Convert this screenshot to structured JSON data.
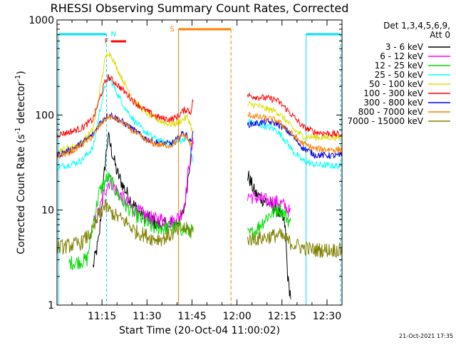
{
  "chart_data": {
    "type": "line",
    "title": "RHESSI Observing Summary Count Rates, Corrected",
    "xlabel": "Start Time (20-Oct-04 11:00:02)",
    "ylabel": "Corrected Count Rate (s",
    "ylabel_sup1": "-1",
    "ylabel_mid": " detector",
    "ylabel_sup2": "-1",
    "ylabel_end": ")",
    "y_scale": "log",
    "ylim": [
      1,
      1000
    ],
    "xlim_minutes": [
      0,
      95
    ],
    "x_ticks": [
      {
        "t": 15,
        "label": "11:15"
      },
      {
        "t": 30,
        "label": "11:30"
      },
      {
        "t": 45,
        "label": "11:45"
      },
      {
        "t": 60,
        "label": "12:00"
      },
      {
        "t": 75,
        "label": "12:15"
      },
      {
        "t": 90,
        "label": "12:30"
      }
    ],
    "y_ticks": [
      {
        "v": 1,
        "label": "1"
      },
      {
        "v": 10,
        "label": "10"
      },
      {
        "v": 100,
        "label": "100"
      },
      {
        "v": 1000,
        "label": "1000"
      }
    ],
    "legend_header": [
      "Det 1,3,4,5,6,9,",
      "Att 0"
    ],
    "legend_position": "right",
    "footer_date": "21-Oct-2021 17:35",
    "annotations": [
      {
        "label": "N",
        "color": "#00e0ff"
      },
      {
        "label": "F",
        "color": "#ff0000"
      },
      {
        "label": "S",
        "color": "#ff7f00"
      }
    ],
    "data_gaps_minutes": [
      [
        45.5,
        63.5
      ]
    ],
    "series": [
      {
        "name": "3 - 6 keV",
        "color": "#000000",
        "points": [
          [
            12,
            2.5
          ],
          [
            14,
            5
          ],
          [
            16,
            30
          ],
          [
            17,
            60
          ],
          [
            18,
            45
          ],
          [
            20,
            25
          ],
          [
            22,
            18
          ],
          [
            25,
            12
          ],
          [
            28,
            9
          ],
          [
            31,
            8
          ],
          [
            34,
            7
          ],
          [
            37,
            7
          ],
          [
            40,
            7.5
          ],
          [
            42,
            9
          ],
          [
            43,
            14
          ],
          [
            44,
            28
          ],
          [
            45,
            45
          ],
          [
            45.5,
            60
          ],
          [
            64,
            22
          ],
          [
            66,
            15
          ],
          [
            70,
            12
          ],
          [
            72,
            11
          ],
          [
            74,
            9.5
          ],
          [
            76,
            7
          ],
          [
            77,
            1.8
          ],
          [
            78,
            1.2
          ]
        ]
      },
      {
        "name": "6 - 12 keV",
        "color": "#ff00ff",
        "points": [
          [
            12,
            7
          ],
          [
            14,
            9.5
          ],
          [
            16,
            16
          ],
          [
            17,
            19
          ],
          [
            18,
            20
          ],
          [
            20,
            16
          ],
          [
            23,
            12
          ],
          [
            26,
            10
          ],
          [
            29,
            9
          ],
          [
            32,
            8
          ],
          [
            35,
            8
          ],
          [
            38,
            7.5
          ],
          [
            40,
            8
          ],
          [
            42,
            10
          ],
          [
            43,
            15
          ],
          [
            44,
            30
          ],
          [
            45,
            45
          ],
          [
            45.5,
            55
          ],
          [
            64,
            14
          ],
          [
            66,
            13.5
          ],
          [
            70,
            12.5
          ],
          [
            74,
            12
          ],
          [
            76,
            11
          ],
          [
            78,
            9
          ]
        ]
      },
      {
        "name": "12 - 25 keV",
        "color": "#00dd00",
        "points": [
          [
            4,
            2.8
          ],
          [
            6,
            2.8
          ],
          [
            8,
            2.9
          ],
          [
            10,
            3
          ],
          [
            12,
            7
          ],
          [
            14,
            15
          ],
          [
            16,
            20
          ],
          [
            17,
            22
          ],
          [
            18,
            20
          ],
          [
            20,
            15
          ],
          [
            23,
            11
          ],
          [
            26,
            9
          ],
          [
            29,
            7.5
          ],
          [
            32,
            6.5
          ],
          [
            35,
            6.5
          ],
          [
            38,
            6.5
          ],
          [
            41,
            6.5
          ],
          [
            43,
            6
          ],
          [
            44.5,
            6
          ],
          [
            64,
            5.5
          ],
          [
            66,
            6
          ],
          [
            70,
            8.5
          ],
          [
            74,
            10.5
          ],
          [
            76,
            9
          ],
          [
            78,
            7
          ]
        ]
      },
      {
        "name": "25 - 50 keV",
        "color": "#00ffff",
        "points": [
          [
            0,
            28
          ],
          [
            4,
            30
          ],
          [
            8,
            33
          ],
          [
            12,
            45
          ],
          [
            14,
            100
          ],
          [
            16,
            200
          ],
          [
            17,
            240
          ],
          [
            18,
            230
          ],
          [
            20,
            170
          ],
          [
            23,
            115
          ],
          [
            26,
            85
          ],
          [
            29,
            68
          ],
          [
            32,
            58
          ],
          [
            35,
            52
          ],
          [
            38,
            50
          ],
          [
            40,
            52
          ],
          [
            42,
            55
          ],
          [
            43.5,
            60
          ],
          [
            44.5,
            45
          ],
          [
            45.5,
            30
          ],
          [
            64,
            85
          ],
          [
            67,
            80
          ],
          [
            70,
            75
          ],
          [
            73,
            70
          ],
          [
            76,
            55
          ],
          [
            79,
            40
          ],
          [
            82,
            33
          ],
          [
            86,
            30
          ],
          [
            95,
            29
          ]
        ]
      },
      {
        "name": "50 - 100 keV",
        "color": "#dddd00",
        "points": [
          [
            0,
            42
          ],
          [
            4,
            45
          ],
          [
            8,
            50
          ],
          [
            12,
            70
          ],
          [
            14,
            160
          ],
          [
            16,
            380
          ],
          [
            17,
            460
          ],
          [
            18,
            430
          ],
          [
            20,
            310
          ],
          [
            23,
            200
          ],
          [
            26,
            140
          ],
          [
            29,
            110
          ],
          [
            32,
            95
          ],
          [
            35,
            85
          ],
          [
            38,
            80
          ],
          [
            40,
            82
          ],
          [
            42,
            90
          ],
          [
            43.5,
            95
          ],
          [
            44.5,
            80
          ],
          [
            45.5,
            60
          ],
          [
            64,
            130
          ],
          [
            67,
            125
          ],
          [
            70,
            115
          ],
          [
            73,
            110
          ],
          [
            76,
            90
          ],
          [
            79,
            70
          ],
          [
            82,
            60
          ],
          [
            86,
            58
          ],
          [
            95,
            58
          ]
        ]
      },
      {
        "name": "100 - 300 keV",
        "color": "#ff0000",
        "points": [
          [
            0,
            62
          ],
          [
            4,
            66
          ],
          [
            8,
            72
          ],
          [
            12,
            90
          ],
          [
            14,
            140
          ],
          [
            16,
            220
          ],
          [
            17,
            250
          ],
          [
            18,
            240
          ],
          [
            20,
            210
          ],
          [
            23,
            170
          ],
          [
            26,
            135
          ],
          [
            29,
            115
          ],
          [
            32,
            100
          ],
          [
            35,
            92
          ],
          [
            38,
            90
          ],
          [
            40,
            95
          ],
          [
            42,
            110
          ],
          [
            43.5,
            115
          ],
          [
            44.5,
            105
          ],
          [
            45.5,
            150
          ],
          [
            64,
            160
          ],
          [
            67,
            155
          ],
          [
            70,
            150
          ],
          [
            73,
            145
          ],
          [
            76,
            120
          ],
          [
            79,
            95
          ],
          [
            82,
            75
          ],
          [
            86,
            66
          ],
          [
            95,
            62
          ]
        ]
      },
      {
        "name": "300 - 800 keV",
        "color": "#0000dd",
        "points": [
          [
            0,
            38
          ],
          [
            4,
            42
          ],
          [
            8,
            50
          ],
          [
            12,
            62
          ],
          [
            14,
            80
          ],
          [
            16,
            95
          ],
          [
            17,
            100
          ],
          [
            18,
            100
          ],
          [
            20,
            92
          ],
          [
            23,
            80
          ],
          [
            26,
            68
          ],
          [
            29,
            58
          ],
          [
            32,
            52
          ],
          [
            35,
            50
          ],
          [
            38,
            50
          ],
          [
            40,
            55
          ],
          [
            42,
            65
          ],
          [
            43.5,
            60
          ],
          [
            44.5,
            52
          ],
          [
            45.5,
            65
          ],
          [
            64,
            80
          ],
          [
            67,
            82
          ],
          [
            70,
            85
          ],
          [
            73,
            82
          ],
          [
            76,
            72
          ],
          [
            79,
            58
          ],
          [
            82,
            45
          ],
          [
            86,
            38
          ],
          [
            95,
            37
          ]
        ]
      },
      {
        "name": "800 - 7000 keV",
        "color": "#ff7f00",
        "points": [
          [
            0,
            37
          ],
          [
            4,
            40
          ],
          [
            8,
            48
          ],
          [
            12,
            60
          ],
          [
            14,
            75
          ],
          [
            16,
            90
          ],
          [
            17,
            95
          ],
          [
            18,
            95
          ],
          [
            20,
            90
          ],
          [
            23,
            78
          ],
          [
            26,
            65
          ],
          [
            29,
            56
          ],
          [
            32,
            50
          ],
          [
            35,
            48
          ],
          [
            38,
            48
          ],
          [
            40,
            53
          ],
          [
            42,
            62
          ],
          [
            43.5,
            58
          ],
          [
            44.5,
            48
          ],
          [
            45.5,
            55
          ],
          [
            64,
            100
          ],
          [
            67,
            95
          ],
          [
            70,
            92
          ],
          [
            73,
            88
          ],
          [
            76,
            75
          ],
          [
            79,
            60
          ],
          [
            82,
            50
          ],
          [
            86,
            44
          ],
          [
            95,
            43
          ]
        ]
      },
      {
        "name": "7000 - 15000 keV",
        "color": "#808000",
        "points": [
          [
            0,
            4
          ],
          [
            4,
            4.2
          ],
          [
            8,
            4.5
          ],
          [
            12,
            6
          ],
          [
            14,
            9
          ],
          [
            16,
            11
          ],
          [
            18,
            9.5
          ],
          [
            20,
            8.5
          ],
          [
            23,
            7.5
          ],
          [
            26,
            6
          ],
          [
            29,
            5.5
          ],
          [
            32,
            5
          ],
          [
            35,
            5
          ],
          [
            38,
            5.5
          ],
          [
            40,
            6
          ],
          [
            42,
            6.5
          ],
          [
            44.5,
            6
          ],
          [
            64,
            5
          ],
          [
            67,
            5
          ],
          [
            70,
            5.2
          ],
          [
            74,
            5.5
          ],
          [
            78,
            4.5
          ],
          [
            82,
            4
          ],
          [
            86,
            3.8
          ],
          [
            95,
            3.8
          ]
        ]
      }
    ]
  }
}
